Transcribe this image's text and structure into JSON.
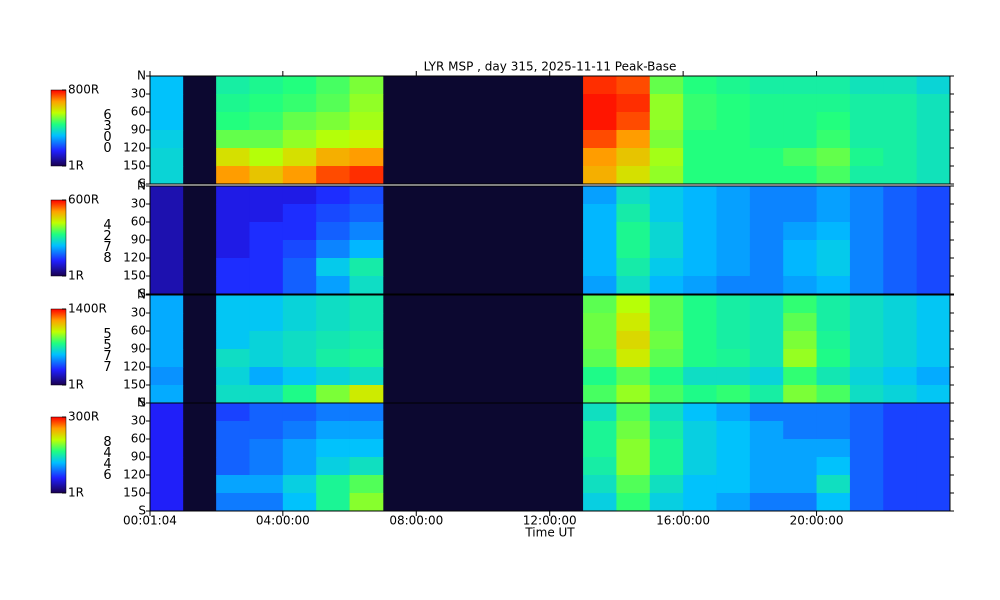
{
  "chart_data": {
    "type": "heatmap",
    "title": "LYR MSP , day 315, 2025-11-11 Peak-Base",
    "xlabel": "Time UT",
    "xlim": [
      64,
      86400
    ],
    "xticks": [
      {
        "value": 64,
        "label": "00:01:04"
      },
      {
        "value": 14400,
        "label": "04:00:00"
      },
      {
        "value": 28800,
        "label": "08:00:00"
      },
      {
        "value": 43200,
        "label": "12:00:00"
      },
      {
        "value": 57600,
        "label": "16:00:00"
      },
      {
        "value": 72000,
        "label": "20:00:00"
      }
    ],
    "x_bins": [
      64,
      3600,
      7200,
      10800,
      14400,
      18000,
      21600,
      25200,
      28800,
      32400,
      36000,
      39600,
      43200,
      46800,
      50400,
      54000,
      57600,
      61200,
      64800,
      68400,
      72000,
      75600,
      79200,
      82800,
      86400
    ],
    "ylim": [
      0,
      180
    ],
    "yticks": [
      {
        "value": 0,
        "label": "N"
      },
      30,
      60,
      90,
      120,
      150,
      {
        "value": 180,
        "label": "S"
      }
    ],
    "y_bins": [
      0,
      30,
      60,
      90,
      120,
      150,
      180
    ],
    "colorbar_log": true,
    "panels": [
      {
        "name": "6300",
        "clim": [
          1,
          800
        ],
        "colorbar_ticks": [
          {
            "value": 1,
            "label": "1R"
          },
          {
            "value": 800,
            "label": "800R"
          }
        ],
        "values": [
          [
            15,
            null,
            30,
            35,
            40,
            50,
            70,
            null,
            null,
            null,
            null,
            null,
            null,
            600,
            500,
            60,
            40,
            35,
            30,
            30,
            30,
            25,
            25,
            20
          ],
          [
            15,
            null,
            35,
            40,
            45,
            55,
            80,
            null,
            null,
            null,
            null,
            null,
            null,
            700,
            600,
            80,
            45,
            40,
            35,
            35,
            35,
            30,
            30,
            25
          ],
          [
            15,
            null,
            40,
            45,
            60,
            70,
            90,
            null,
            null,
            null,
            null,
            null,
            null,
            700,
            500,
            80,
            45,
            40,
            35,
            35,
            40,
            30,
            30,
            25
          ],
          [
            18,
            null,
            60,
            60,
            80,
            100,
            120,
            null,
            null,
            null,
            null,
            null,
            null,
            500,
            300,
            70,
            40,
            40,
            35,
            35,
            45,
            30,
            30,
            25
          ],
          [
            20,
            null,
            150,
            100,
            150,
            250,
            300,
            null,
            null,
            null,
            null,
            null,
            null,
            300,
            200,
            90,
            40,
            40,
            40,
            50,
            60,
            35,
            30,
            25
          ],
          [
            20,
            null,
            300,
            200,
            300,
            500,
            600,
            null,
            null,
            null,
            null,
            null,
            null,
            250,
            150,
            80,
            40,
            40,
            40,
            40,
            50,
            30,
            30,
            25
          ]
        ]
      },
      {
        "name": "4278",
        "clim": [
          1,
          600
        ],
        "colorbar_ticks": [
          {
            "value": 1,
            "label": "1R"
          },
          {
            "value": 600,
            "label": "600R"
          }
        ],
        "values": [
          [
            2,
            null,
            3,
            3,
            3,
            4,
            5,
            null,
            null,
            null,
            null,
            null,
            null,
            10,
            20,
            15,
            12,
            10,
            8,
            8,
            10,
            8,
            6,
            5
          ],
          [
            2,
            null,
            3,
            3,
            4,
            5,
            6,
            null,
            null,
            null,
            null,
            null,
            null,
            12,
            25,
            15,
            12,
            10,
            8,
            8,
            10,
            8,
            6,
            5
          ],
          [
            2,
            null,
            3,
            4,
            4,
            6,
            8,
            null,
            null,
            null,
            null,
            null,
            null,
            12,
            30,
            18,
            12,
            10,
            8,
            10,
            12,
            8,
            6,
            5
          ],
          [
            2,
            null,
            3,
            4,
            5,
            8,
            12,
            null,
            null,
            null,
            null,
            null,
            null,
            12,
            30,
            18,
            12,
            10,
            8,
            12,
            15,
            8,
            6,
            5
          ],
          [
            2,
            null,
            4,
            4,
            6,
            15,
            25,
            null,
            null,
            null,
            null,
            null,
            null,
            12,
            25,
            15,
            12,
            10,
            8,
            12,
            15,
            8,
            6,
            5
          ],
          [
            2,
            null,
            4,
            4,
            6,
            10,
            20,
            null,
            null,
            null,
            null,
            null,
            null,
            10,
            20,
            12,
            10,
            8,
            8,
            10,
            12,
            8,
            6,
            5
          ]
        ]
      },
      {
        "name": "5577",
        "clim": [
          1,
          1400
        ],
        "colorbar_ticks": [
          {
            "value": 1,
            "label": "1R"
          },
          {
            "value": 1400,
            "label": "1400R"
          }
        ],
        "values": [
          [
            15,
            null,
            20,
            20,
            25,
            30,
            35,
            null,
            null,
            null,
            null,
            null,
            null,
            80,
            150,
            80,
            50,
            40,
            35,
            60,
            40,
            30,
            25,
            20
          ],
          [
            15,
            null,
            20,
            20,
            25,
            30,
            35,
            null,
            null,
            null,
            null,
            null,
            null,
            90,
            200,
            80,
            50,
            40,
            35,
            80,
            40,
            30,
            25,
            20
          ],
          [
            15,
            null,
            20,
            25,
            30,
            35,
            40,
            null,
            null,
            null,
            null,
            null,
            null,
            90,
            250,
            90,
            50,
            40,
            35,
            100,
            45,
            30,
            25,
            20
          ],
          [
            15,
            null,
            30,
            25,
            30,
            40,
            45,
            null,
            null,
            null,
            null,
            null,
            null,
            80,
            200,
            80,
            50,
            45,
            35,
            120,
            50,
            30,
            25,
            20
          ],
          [
            12,
            null,
            25,
            15,
            20,
            25,
            30,
            null,
            null,
            null,
            null,
            null,
            null,
            50,
            80,
            50,
            30,
            30,
            25,
            60,
            35,
            25,
            20,
            15
          ],
          [
            15,
            null,
            30,
            30,
            50,
            100,
            200,
            null,
            null,
            null,
            null,
            null,
            null,
            70,
            120,
            70,
            50,
            60,
            40,
            100,
            70,
            30,
            25,
            20
          ]
        ]
      },
      {
        "name": "8446",
        "clim": [
          1,
          300
        ],
        "colorbar_ticks": [
          {
            "value": 1,
            "label": "1R"
          },
          {
            "value": 300,
            "label": "300R"
          }
        ],
        "values": [
          [
            3,
            null,
            4,
            5,
            5,
            6,
            6,
            null,
            null,
            null,
            null,
            null,
            null,
            15,
            30,
            15,
            10,
            8,
            6,
            6,
            6,
            5,
            4,
            4
          ],
          [
            3,
            null,
            5,
            5,
            6,
            8,
            8,
            null,
            null,
            null,
            null,
            null,
            null,
            20,
            35,
            18,
            12,
            10,
            8,
            6,
            6,
            5,
            4,
            4
          ],
          [
            3,
            null,
            5,
            6,
            8,
            10,
            10,
            null,
            null,
            null,
            null,
            null,
            null,
            20,
            40,
            20,
            12,
            10,
            8,
            8,
            8,
            5,
            4,
            4
          ],
          [
            3,
            null,
            5,
            6,
            8,
            12,
            15,
            null,
            null,
            null,
            null,
            null,
            null,
            18,
            40,
            20,
            12,
            10,
            8,
            8,
            10,
            5,
            4,
            4
          ],
          [
            3,
            null,
            8,
            8,
            12,
            20,
            30,
            null,
            null,
            null,
            null,
            null,
            null,
            15,
            30,
            15,
            10,
            10,
            8,
            8,
            15,
            5,
            4,
            4
          ],
          [
            3,
            null,
            6,
            6,
            10,
            20,
            40,
            null,
            null,
            null,
            null,
            null,
            null,
            12,
            25,
            12,
            10,
            8,
            6,
            6,
            10,
            5,
            4,
            4
          ]
        ]
      }
    ]
  }
}
